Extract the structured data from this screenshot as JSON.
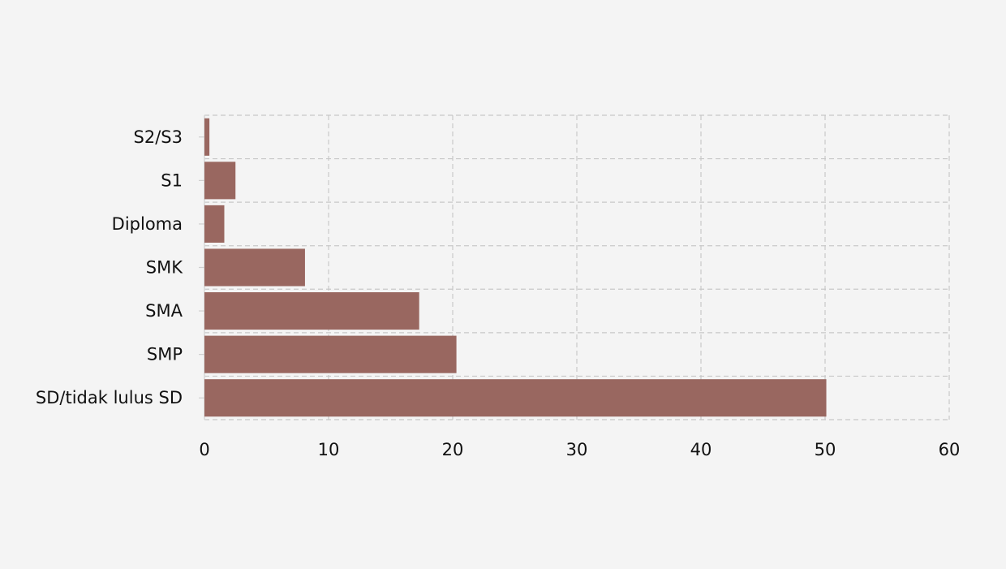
{
  "chart_data": {
    "type": "bar",
    "orientation": "horizontal",
    "categories": [
      "S2/S3",
      "S1",
      "Diploma",
      "SMK",
      "SMA",
      "SMP",
      "SD/tidak lulus SD"
    ],
    "values": [
      0.4,
      2.5,
      1.6,
      8.1,
      17.3,
      20.3,
      50.1
    ],
    "title": "",
    "xlabel": "",
    "ylabel": "",
    "xlim": [
      0,
      60
    ],
    "xticks": [
      0,
      10,
      20,
      30,
      40,
      50,
      60
    ],
    "grid": true,
    "grid_style": "dashed",
    "bar_color": "#996760",
    "background_color": "#f4f4f4",
    "legend": false
  }
}
